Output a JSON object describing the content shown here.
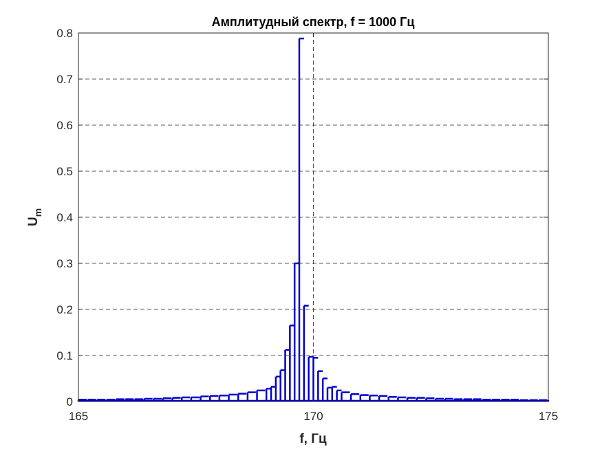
{
  "chart_data": {
    "type": "stem",
    "title": "Амплитудный спектр, f = 1000 Гц",
    "xlabel": "f, Гц",
    "ylabel": "U",
    "ylabel_sub": "m",
    "xlim": [
      165,
      175
    ],
    "ylim": [
      0,
      0.8
    ],
    "xticks": [
      "165",
      "170",
      "175"
    ],
    "yticks": [
      "0",
      "0.1",
      "0.2",
      "0.3",
      "0.4",
      "0.5",
      "0.6",
      "0.7",
      "0.8"
    ],
    "grid": true,
    "color": "#0000CD",
    "x": [
      165.0,
      165.2,
      165.4,
      165.6,
      165.8,
      166.0,
      166.2,
      166.4,
      166.6,
      166.8,
      167.0,
      167.2,
      167.4,
      167.6,
      167.8,
      168.0,
      168.2,
      168.4,
      168.6,
      168.8,
      169.0,
      169.1,
      169.2,
      169.3,
      169.4,
      169.5,
      169.6,
      169.7,
      169.8,
      169.9,
      170.0,
      170.1,
      170.2,
      170.3,
      170.4,
      170.5,
      170.6,
      170.8,
      171.0,
      171.2,
      171.4,
      171.6,
      171.8,
      172.0,
      172.2,
      172.4,
      172.6,
      172.8,
      173.0,
      173.2,
      173.4,
      173.6,
      173.8,
      174.0,
      174.2,
      174.4,
      174.6,
      174.8,
      175.0
    ],
    "values": [
      0.004,
      0.004,
      0.004,
      0.004,
      0.005,
      0.005,
      0.005,
      0.006,
      0.006,
      0.007,
      0.008,
      0.009,
      0.009,
      0.011,
      0.012,
      0.013,
      0.015,
      0.017,
      0.02,
      0.024,
      0.028,
      0.032,
      0.054,
      0.068,
      0.112,
      0.165,
      0.3,
      0.788,
      0.208,
      0.097,
      0.095,
      0.066,
      0.05,
      0.03,
      0.032,
      0.024,
      0.02,
      0.016,
      0.014,
      0.013,
      0.012,
      0.01,
      0.009,
      0.008,
      0.008,
      0.007,
      0.006,
      0.006,
      0.005,
      0.005,
      0.005,
      0.004,
      0.004,
      0.004,
      0.004,
      0.003,
      0.003,
      0.003,
      0.003
    ]
  }
}
